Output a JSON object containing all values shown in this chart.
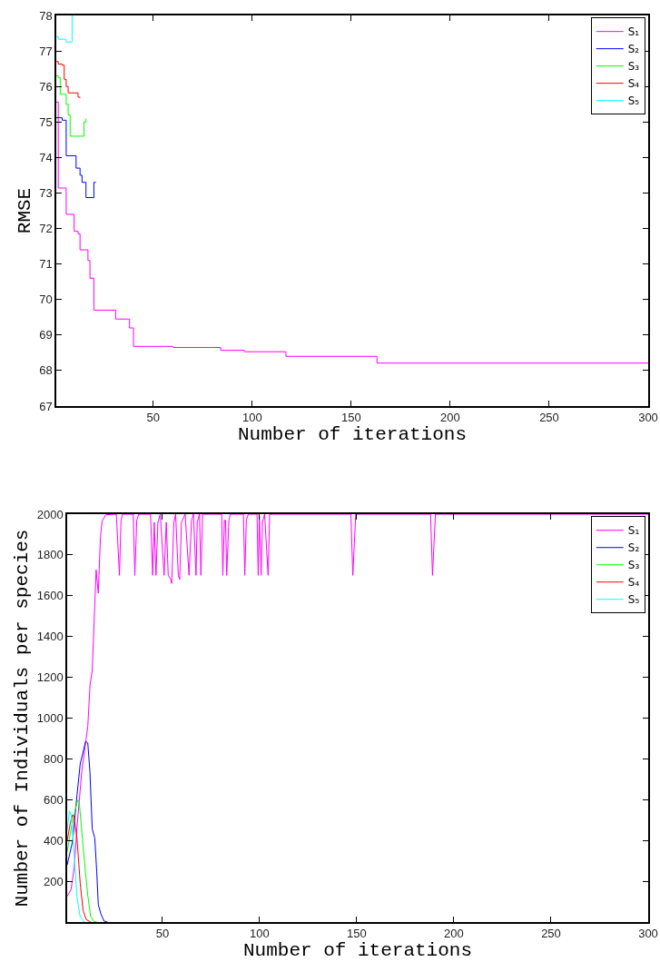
{
  "chart_data": [
    {
      "type": "step",
      "xlabel": "Number of iterations",
      "ylabel": "RMSE",
      "xlim": [
        1,
        300
      ],
      "ylim": [
        67,
        78
      ],
      "xticks": [
        50,
        100,
        150,
        200,
        250,
        300
      ],
      "yticks": [
        67,
        68,
        69,
        70,
        71,
        72,
        73,
        74,
        75,
        76,
        77,
        78
      ],
      "legend": "top right",
      "series": [
        {
          "name": "S₁",
          "color": "#ff00ff",
          "x": [
            1,
            2,
            6,
            10,
            12,
            13,
            17,
            18,
            20,
            31,
            38,
            40,
            60,
            84,
            96,
            117,
            163,
            300
          ],
          "values": [
            75.56,
            73.14,
            72.4,
            71.92,
            71.85,
            71.4,
            71.1,
            70.6,
            69.7,
            69.45,
            69.2,
            68.68,
            68.65,
            68.57,
            68.53,
            68.4,
            68.21,
            68.21
          ]
        },
        {
          "name": "S₂",
          "color": "#0000ff",
          "x": [
            1,
            4,
            6,
            11,
            13,
            14,
            16,
            20,
            21
          ],
          "values": [
            75.12,
            75.05,
            74.05,
            73.7,
            73.5,
            73.3,
            72.87,
            73.3,
            73.3
          ]
        },
        {
          "name": "S₃",
          "color": "#00ff00",
          "x": [
            1,
            2,
            3,
            5,
            6,
            7,
            8,
            15,
            16
          ],
          "values": [
            76.3,
            76.25,
            75.78,
            75.78,
            75.5,
            75.2,
            74.6,
            75.0,
            75.1
          ]
        },
        {
          "name": "S₄",
          "color": "#ff0000",
          "x": [
            1,
            2,
            4,
            5,
            6,
            7,
            11,
            12,
            13
          ],
          "values": [
            76.7,
            76.63,
            76.6,
            76.2,
            76.0,
            75.82,
            75.82,
            75.7,
            75.68
          ]
        },
        {
          "name": "S₅",
          "color": "#00ffff",
          "x": [
            1,
            2,
            5,
            6,
            8,
            9
          ],
          "values": [
            77.4,
            77.33,
            77.33,
            77.25,
            77.25,
            78
          ]
        }
      ]
    },
    {
      "type": "line",
      "xlabel": "Number of iterations",
      "ylabel": "Number of Individuals per species",
      "xlim": [
        1,
        300
      ],
      "ylim": [
        0,
        2000
      ],
      "xticks": [
        50,
        100,
        150,
        200,
        250,
        300
      ],
      "yticks": [
        200,
        400,
        600,
        800,
        1000,
        1200,
        1400,
        1600,
        1800,
        2000
      ],
      "legend": "top right",
      "series": [
        {
          "name": "S₁",
          "color": "#ff00ff",
          "x": [
            1,
            3,
            4.6,
            6.1,
            8.5,
            11.6,
            12.8,
            13.9,
            15.9,
            17,
            18.1,
            19,
            20.9,
            26.3,
            27.9,
            28.7,
            29.5,
            35,
            35.8,
            36.8,
            37.8,
            43.9,
            45,
            45.8,
            46.7,
            47.7,
            48.9,
            50.9,
            52,
            53,
            54.3,
            54.8,
            55.9,
            56.8,
            58.2,
            58.9,
            59.8,
            61.7,
            63.7,
            65,
            66,
            67.3,
            67.9,
            69.1,
            69.8,
            70.7,
            80.5,
            81.1,
            81.9,
            82.5,
            83.1,
            84.2,
            85,
            91.7,
            92.4,
            93.2,
            94.2,
            98.7,
            99.3,
            99.9,
            100.8,
            101.5,
            102.6,
            104.4,
            105.2,
            147,
            148,
            149.5,
            188,
            189,
            190.5,
            300
          ],
          "values": [
            126,
            160,
            264,
            471,
            738,
            960,
            1167,
            1234,
            1727,
            1612,
            1886,
            1967,
            1997,
            2000,
            1700,
            1970,
            2000,
            2000,
            1700,
            1970,
            2000,
            2000,
            1700,
            1960,
            1700,
            1960,
            2000,
            1700,
            1960,
            1700,
            1680,
            1660,
            1960,
            2000,
            1700,
            1680,
            1960,
            2000,
            1700,
            1970,
            2000,
            1700,
            1960,
            2000,
            1700,
            2000,
            2000,
            1700,
            1970,
            1970,
            1700,
            1970,
            2000,
            2000,
            1700,
            1970,
            2000,
            2000,
            1700,
            1990,
            1700,
            1960,
            2000,
            1700,
            2000,
            2000,
            1700,
            2000,
            2000,
            1700,
            2000,
            2000
          ]
        },
        {
          "name": "S₂",
          "color": "#0000ff",
          "x": [
            1,
            3.8,
            6.1,
            7.7,
            10.5,
            11.6,
            12.7,
            13.9,
            15.2,
            16.2,
            17,
            18.3,
            20,
            21.7
          ],
          "values": [
            280,
            397,
            627,
            775,
            886,
            878,
            738,
            456,
            412,
            249,
            86,
            41,
            4,
            0
          ]
        },
        {
          "name": "S₃",
          "color": "#00ff00",
          "x": [
            1,
            3,
            5.4,
            6.4,
            7.2,
            9.2,
            11.6,
            13.1,
            14.7,
            16.2
          ],
          "values": [
            345,
            456,
            560,
            597,
            590,
            367,
            130,
            27,
            4,
            0
          ]
        },
        {
          "name": "S₄",
          "color": "#ff0000",
          "x": [
            1,
            2.6,
            3.8,
            4.6,
            6.1,
            7.7,
            9.2,
            10.8,
            13.1
          ],
          "values": [
            397,
            486,
            526,
            515,
            404,
            190,
            56,
            12,
            0
          ]
        },
        {
          "name": "S₅",
          "color": "#00ffff",
          "x": [
            1,
            2.2,
            3.2,
            4.6,
            6.1,
            7.7,
            9.7
          ],
          "values": [
            449,
            545,
            516,
            338,
            116,
            27,
            0
          ]
        }
      ]
    }
  ]
}
